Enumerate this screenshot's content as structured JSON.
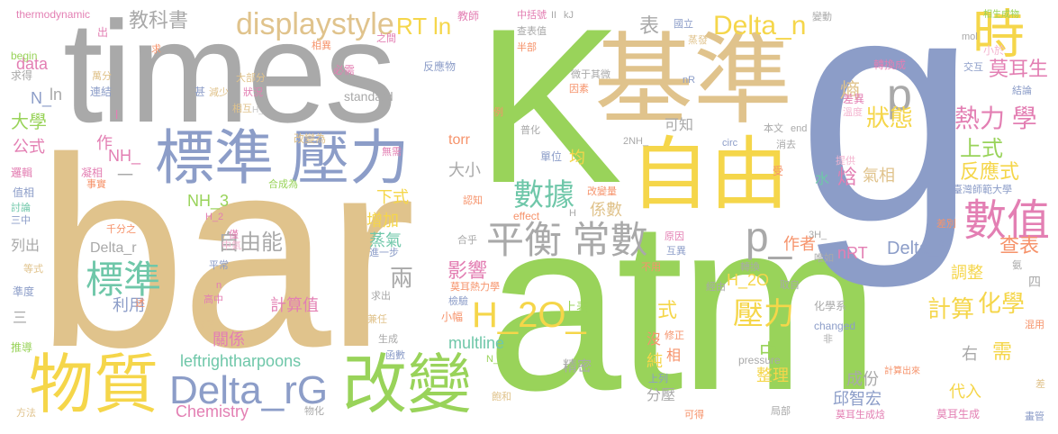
{
  "palette": {
    "tan": "#e0c38c",
    "gray": "#a9a9a9",
    "green": "#99d35a",
    "blue": "#8c9dc8",
    "yellow": "#f5d64a",
    "pink": "#e37fb3",
    "orange": "#f6936b",
    "teal": "#6fc7a9",
    "lightpink": "#f4b5d0",
    "lightgreen": "#c2e37c",
    "lightblue": "#b3c1e1",
    "lightgray": "#c8c8c8"
  },
  "words": [
    {
      "text": "bar"
    },
    {
      "text": "atm"
    },
    {
      "text": "g"
    },
    {
      "text": "K"
    },
    {
      "text": "times"
    },
    {
      "text": "基準"
    },
    {
      "text": "自由"
    },
    {
      "text": "標準 壓力"
    },
    {
      "text": "物質"
    },
    {
      "text": "改變"
    },
    {
      "text": "Delta_rG"
    },
    {
      "text": "平衡 常數"
    },
    {
      "text": "displaystyle"
    },
    {
      "text": "H_2O_"
    },
    {
      "text": "p_"
    },
    {
      "text": "Delta_n"
    },
    {
      "text": "時"
    },
    {
      "text": "數值"
    },
    {
      "text": "數據"
    },
    {
      "text": "標準"
    },
    {
      "text": "壓力"
    },
    {
      "text": "p"
    },
    {
      "text": "熱力 學"
    },
    {
      "text": "自由能"
    },
    {
      "text": "RT ln"
    },
    {
      "text": "教科書"
    },
    {
      "text": "莫耳生"
    },
    {
      "text": "狀態"
    },
    {
      "text": "上式"
    },
    {
      "text": "反應式"
    },
    {
      "text": "影響"
    },
    {
      "text": "計算值"
    },
    {
      "text": "Delta_f"
    },
    {
      "text": "調整"
    },
    {
      "text": "查表"
    },
    {
      "text": "作者"
    },
    {
      "text": "nRT"
    },
    {
      "text": "multline"
    },
    {
      "text": "化學"
    },
    {
      "text": "計算"
    },
    {
      "text": "leftrightharpoons"
    },
    {
      "text": "Chemistry"
    },
    {
      "text": "H_2O"
    },
    {
      "text": "整理"
    },
    {
      "text": "代入"
    },
    {
      "text": "成份"
    },
    {
      "text": "邱智宏"
    },
    {
      "text": "增加"
    },
    {
      "text": "蒸氣"
    },
    {
      "text": "兩"
    },
    {
      "text": "係數"
    },
    {
      "text": "NH_3"
    },
    {
      "text": "Delta_r"
    },
    {
      "text": "公式"
    },
    {
      "text": "大學"
    },
    {
      "text": "N_"
    },
    {
      "text": "data"
    },
    {
      "text": "ln"
    },
    {
      "text": "NH_"
    },
    {
      "text": "作"
    },
    {
      "text": "利用"
    },
    {
      "text": "關係"
    },
    {
      "text": "精密"
    },
    {
      "text": "純"
    },
    {
      "text": "分壓"
    },
    {
      "text": "中"
    },
    {
      "text": "需"
    },
    {
      "text": "右"
    },
    {
      "text": "氣相"
    },
    {
      "text": "焓"
    },
    {
      "text": "熵"
    },
    {
      "text": "式"
    },
    {
      "text": "可知"
    },
    {
      "text": "表"
    },
    {
      "text": "大小"
    },
    {
      "text": "下式"
    },
    {
      "text": "torr"
    },
    {
      "text": "均"
    },
    {
      "text": "水"
    },
    {
      "text": "一"
    },
    {
      "text": "三"
    },
    {
      "text": "列出"
    },
    {
      "text": "standard"
    },
    {
      "text": "thermodynamic"
    },
    {
      "text": "begin"
    },
    {
      "text": "求得"
    },
    {
      "text": "方法"
    },
    {
      "text": "推導"
    },
    {
      "text": "準度"
    },
    {
      "text": "等式"
    },
    {
      "text": "討論"
    },
    {
      "text": "三中"
    },
    {
      "text": "值相"
    },
    {
      "text": "邏輯"
    },
    {
      "text": "凝相"
    },
    {
      "text": "事實"
    },
    {
      "text": "合成為"
    },
    {
      "text": "相互"
    },
    {
      "text": "改變為"
    },
    {
      "text": "無需"
    },
    {
      "text": "連結"
    },
    {
      "text": "萬分"
    },
    {
      "text": "減少"
    },
    {
      "text": "狀況"
    },
    {
      "text": "大部分"
    },
    {
      "text": "甚"
    },
    {
      "text": "必需"
    },
    {
      "text": "反應物"
    },
    {
      "text": "之間"
    },
    {
      "text": "相異"
    },
    {
      "text": "出"
    },
    {
      "text": "求"
    },
    {
      "text": "中括號"
    },
    {
      "text": "查表值"
    },
    {
      "text": "半部"
    },
    {
      "text": "微于其微"
    },
    {
      "text": "因素"
    },
    {
      "text": "國立"
    },
    {
      "text": "蒸發"
    },
    {
      "text": "轉換成"
    },
    {
      "text": "差異"
    },
    {
      "text": "溫度"
    },
    {
      "text": "結論"
    },
    {
      "text": "交互"
    },
    {
      "text": "小於"
    },
    {
      "text": "mol"
    },
    {
      "text": "相生成物"
    },
    {
      "text": "變動"
    },
    {
      "text": "本文"
    },
    {
      "text": "消去"
    },
    {
      "text": "end"
    },
    {
      "text": "circ"
    },
    {
      "text": "受"
    },
    {
      "text": "提供"
    },
    {
      "text": "臺灣師範大學"
    },
    {
      "text": "差別"
    },
    {
      "text": "氨"
    },
    {
      "text": "唯如"
    },
    {
      "text": "轉換"
    },
    {
      "text": "取自"
    },
    {
      "text": "經由"
    },
    {
      "text": "原因"
    },
    {
      "text": "互異"
    },
    {
      "text": "不用"
    },
    {
      "text": "合乎"
    },
    {
      "text": "中氣"
    },
    {
      "text": "僅"
    },
    {
      "text": "千分之"
    },
    {
      "text": "平常"
    },
    {
      "text": "高中"
    },
    {
      "text": "述"
    },
    {
      "text": "做為"
    },
    {
      "text": "兼任"
    },
    {
      "text": "求出"
    },
    {
      "text": "生成"
    },
    {
      "text": "函數"
    },
    {
      "text": "物化"
    },
    {
      "text": "上列"
    },
    {
      "text": "飽和"
    },
    {
      "text": "可得"
    },
    {
      "text": "局部"
    },
    {
      "text": "莫耳生成焓"
    },
    {
      "text": "莫耳生成"
    },
    {
      "text": "畫管"
    },
    {
      "text": "差"
    },
    {
      "text": "混用"
    },
    {
      "text": "四"
    },
    {
      "text": "化學系"
    },
    {
      "text": "changed"
    },
    {
      "text": "pressure"
    },
    {
      "text": "計算出來"
    },
    {
      "text": "非"
    },
    {
      "text": "修正"
    },
    {
      "text": "沒"
    },
    {
      "text": "相"
    },
    {
      "text": "上表"
    },
    {
      "text": "小幅"
    },
    {
      "text": "檢驗"
    },
    {
      "text": "莫耳熱力學"
    },
    {
      "text": "effect"
    },
    {
      "text": "H"
    },
    {
      "text": "改變量"
    },
    {
      "text": "認知"
    },
    {
      "text": "單位"
    },
    {
      "text": "普化"
    },
    {
      "text": "例"
    },
    {
      "text": "H_2"
    },
    {
      "text": "N_2"
    },
    {
      "text": "3H_"
    },
    {
      "text": "2NH_"
    },
    {
      "text": "nR"
    },
    {
      "text": "kJ"
    },
    {
      "text": "II"
    },
    {
      "text": "教師"
    },
    {
      "text": "H_"
    },
    {
      "text": "l"
    },
    {
      "text": "n"
    },
    {
      "text": "進一步"
    }
  ]
}
